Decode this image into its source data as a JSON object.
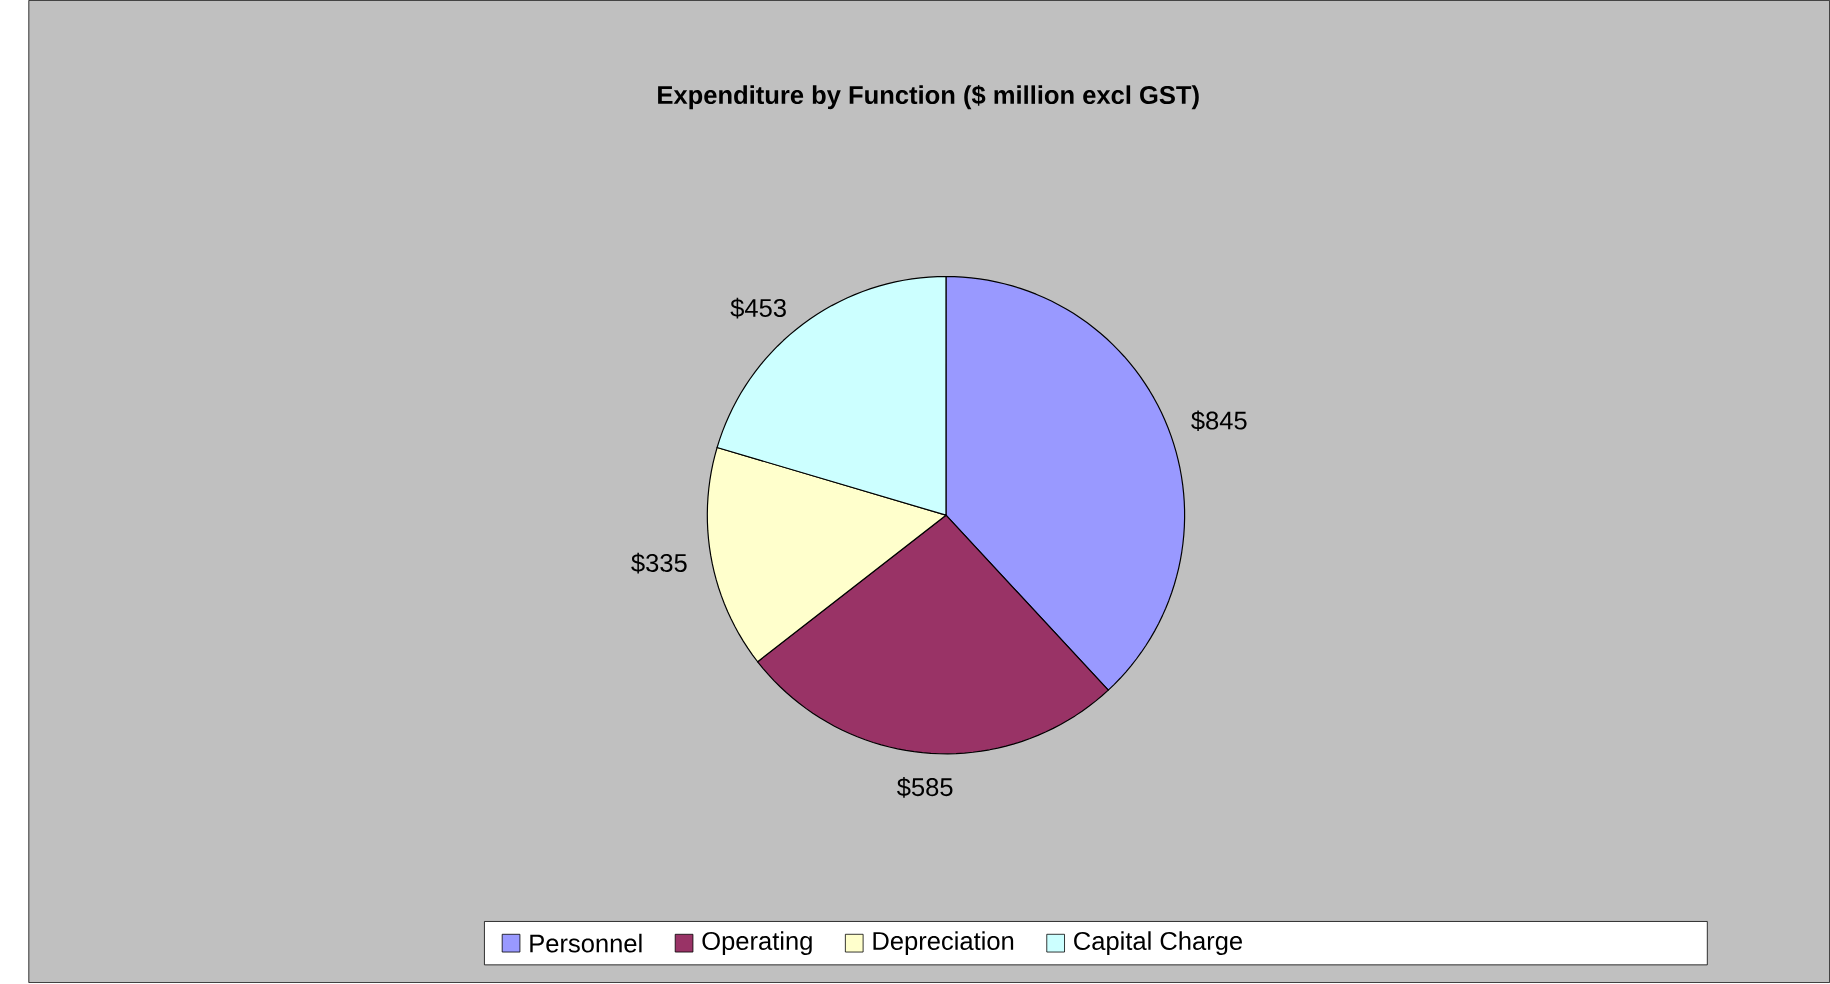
{
  "chart_data": {
    "type": "pie",
    "title": "Expenditure by Function ($ million excl GST)",
    "categories": [
      "Personnel",
      "Operating",
      "Depreciation",
      "Capital Charge"
    ],
    "values": [
      845,
      585,
      335,
      453
    ],
    "colors": [
      "#9999ff",
      "#993366",
      "#ffffcc",
      "#ccffff"
    ],
    "value_labels": [
      "$845",
      "$585",
      "$335",
      "$453"
    ],
    "legend": "bottom"
  }
}
